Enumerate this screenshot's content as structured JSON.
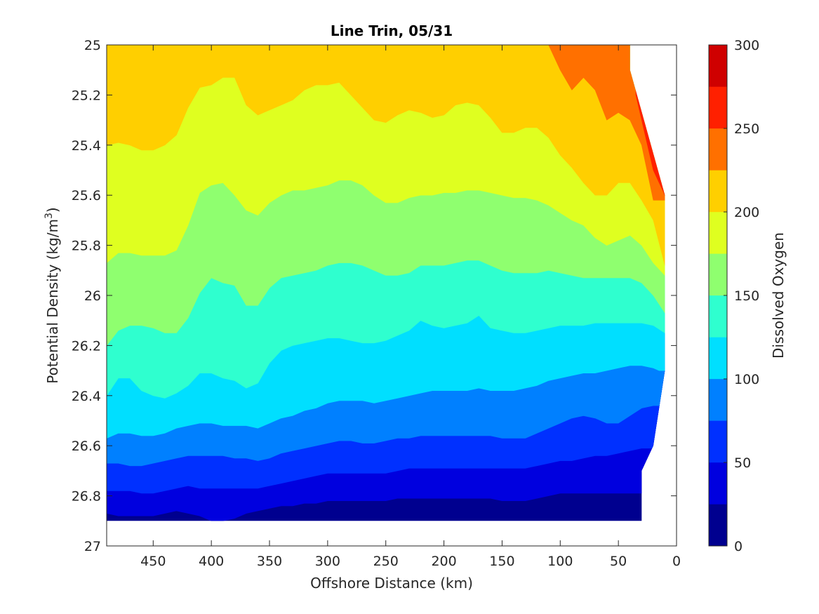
{
  "chart_data": {
    "type": "contourf",
    "title": "Line Trin, 05/31",
    "xlabel": "Offshore Distance (km)",
    "ylabel_main": "Potential Density (kg/m",
    "ylabel_sup": "3",
    "ylabel_close": ")",
    "colorbar_label": "Dissolved Oxygen",
    "xlim": [
      490,
      0
    ],
    "ylim": [
      25,
      27
    ],
    "x_reversed": true,
    "y_reversed": true,
    "x_ticks": [
      450,
      400,
      350,
      300,
      250,
      200,
      150,
      100,
      50,
      0
    ],
    "y_ticks": [
      25,
      25.2,
      25.4,
      25.6,
      25.8,
      26,
      26.2,
      26.4,
      26.6,
      26.8,
      27
    ],
    "y_tick_labels": [
      "25",
      "25.2",
      "25.4",
      "25.6",
      "25.8",
      "26",
      "26.2",
      "26.4",
      "26.6",
      "26.8",
      "27"
    ],
    "colorbar_ticks": [
      0,
      50,
      100,
      150,
      200,
      250,
      300
    ],
    "colorbar_range": [
      0,
      300
    ],
    "levels": [
      0,
      25,
      50,
      75,
      100,
      125,
      150,
      175,
      200,
      225,
      250,
      275,
      300
    ],
    "level_colors": [
      "#00008F",
      "#0000DF",
      "#0030FF",
      "#0080FF",
      "#00DFFF",
      "#2FFFCF",
      "#8FFF6F",
      "#DFFF20",
      "#FFCF00",
      "#FF7000",
      "#FF2000",
      "#CF0000"
    ],
    "data_extent": {
      "x": [
        490,
        490,
        30,
        30,
        20,
        10,
        10,
        40,
        40
      ],
      "y": [
        25,
        26.9,
        26.9,
        26.7,
        26.6,
        26.3,
        25.6,
        25.1,
        25
      ]
    },
    "contours": [
      {
        "level": 25,
        "x": [
          490,
          480,
          470,
          460,
          450,
          440,
          430,
          420,
          410,
          400,
          390,
          380,
          370,
          360,
          350,
          340,
          330,
          320,
          310,
          300,
          290,
          280,
          270,
          260,
          250,
          240,
          230,
          220,
          210,
          200,
          190,
          180,
          170,
          160,
          150,
          140,
          130,
          120,
          110,
          100,
          90,
          80,
          70,
          60,
          50,
          40,
          30
        ],
        "y": [
          26.87,
          26.88,
          26.88,
          26.88,
          26.88,
          26.87,
          26.86,
          26.87,
          26.88,
          26.9,
          26.9,
          26.89,
          26.87,
          26.86,
          26.85,
          26.84,
          26.84,
          26.83,
          26.83,
          26.82,
          26.82,
          26.82,
          26.82,
          26.82,
          26.82,
          26.81,
          26.81,
          26.81,
          26.81,
          26.81,
          26.81,
          26.81,
          26.81,
          26.81,
          26.82,
          26.82,
          26.82,
          26.81,
          26.8,
          26.79,
          26.79,
          26.79,
          26.79,
          26.79,
          26.79,
          26.79,
          26.79
        ]
      },
      {
        "level": 50,
        "x": [
          490,
          480,
          470,
          460,
          450,
          440,
          430,
          420,
          410,
          400,
          390,
          380,
          370,
          360,
          350,
          340,
          330,
          320,
          310,
          300,
          290,
          280,
          270,
          260,
          250,
          240,
          230,
          220,
          210,
          200,
          190,
          180,
          170,
          160,
          150,
          140,
          130,
          120,
          110,
          100,
          90,
          80,
          70,
          60,
          50,
          40,
          30
        ],
        "y": [
          26.78,
          26.78,
          26.78,
          26.79,
          26.79,
          26.78,
          26.77,
          26.76,
          26.77,
          26.77,
          26.77,
          26.77,
          26.77,
          26.77,
          26.76,
          26.75,
          26.74,
          26.73,
          26.72,
          26.71,
          26.71,
          26.71,
          26.71,
          26.71,
          26.71,
          26.7,
          26.69,
          26.69,
          26.69,
          26.69,
          26.69,
          26.69,
          26.69,
          26.69,
          26.69,
          26.69,
          26.69,
          26.68,
          26.67,
          26.66,
          26.66,
          26.65,
          26.64,
          26.64,
          26.63,
          26.62,
          26.61
        ]
      },
      {
        "level": 75,
        "x": [
          490,
          480,
          470,
          460,
          450,
          440,
          430,
          420,
          410,
          400,
          390,
          380,
          370,
          360,
          350,
          340,
          330,
          320,
          310,
          300,
          290,
          280,
          270,
          260,
          250,
          240,
          230,
          220,
          210,
          200,
          190,
          180,
          170,
          160,
          150,
          140,
          130,
          120,
          110,
          100,
          90,
          80,
          70,
          60,
          50,
          40,
          30,
          20
        ],
        "y": [
          26.67,
          26.67,
          26.68,
          26.68,
          26.67,
          26.66,
          26.65,
          26.64,
          26.64,
          26.64,
          26.64,
          26.65,
          26.65,
          26.66,
          26.65,
          26.63,
          26.62,
          26.61,
          26.6,
          26.59,
          26.58,
          26.58,
          26.59,
          26.59,
          26.58,
          26.57,
          26.57,
          26.56,
          26.56,
          26.56,
          26.56,
          26.56,
          26.56,
          26.56,
          26.57,
          26.57,
          26.57,
          26.55,
          26.53,
          26.51,
          26.49,
          26.48,
          26.49,
          26.51,
          26.51,
          26.48,
          26.45,
          26.44
        ]
      },
      {
        "level": 100,
        "x": [
          490,
          480,
          470,
          460,
          450,
          440,
          430,
          420,
          410,
          400,
          390,
          380,
          370,
          360,
          350,
          340,
          330,
          320,
          310,
          300,
          290,
          280,
          270,
          260,
          250,
          240,
          230,
          220,
          210,
          200,
          190,
          180,
          170,
          160,
          150,
          140,
          130,
          120,
          110,
          100,
          90,
          80,
          70,
          60,
          50,
          40,
          30,
          20,
          15
        ],
        "y": [
          26.57,
          26.55,
          26.55,
          26.56,
          26.56,
          26.55,
          26.53,
          26.52,
          26.51,
          26.51,
          26.52,
          26.52,
          26.52,
          26.53,
          26.51,
          26.49,
          26.48,
          26.46,
          26.45,
          26.43,
          26.42,
          26.42,
          26.42,
          26.43,
          26.42,
          26.41,
          26.4,
          26.39,
          26.38,
          26.38,
          26.38,
          26.38,
          26.37,
          26.38,
          26.38,
          26.38,
          26.37,
          26.36,
          26.34,
          26.33,
          26.32,
          26.31,
          26.31,
          26.3,
          26.29,
          26.28,
          26.28,
          26.29,
          26.3
        ]
      },
      {
        "level": 125,
        "x": [
          490,
          480,
          470,
          460,
          450,
          440,
          430,
          420,
          410,
          400,
          390,
          380,
          370,
          360,
          350,
          340,
          330,
          320,
          310,
          300,
          290,
          280,
          270,
          260,
          250,
          240,
          230,
          220,
          210,
          200,
          190,
          180,
          170,
          160,
          150,
          140,
          130,
          120,
          110,
          100,
          90,
          80,
          70,
          60,
          50,
          40,
          30,
          20,
          10
        ],
        "y": [
          26.4,
          26.33,
          26.33,
          26.38,
          26.4,
          26.41,
          26.39,
          26.36,
          26.31,
          26.31,
          26.33,
          26.34,
          26.37,
          26.35,
          26.27,
          26.22,
          26.2,
          26.19,
          26.18,
          26.17,
          26.17,
          26.18,
          26.19,
          26.19,
          26.18,
          26.16,
          26.14,
          26.1,
          26.12,
          26.13,
          26.12,
          26.11,
          26.08,
          26.13,
          26.14,
          26.15,
          26.15,
          26.14,
          26.13,
          26.12,
          26.12,
          26.12,
          26.11,
          26.11,
          26.11,
          26.11,
          26.11,
          26.12,
          26.15
        ]
      },
      {
        "level": 150,
        "x": [
          490,
          480,
          470,
          460,
          450,
          440,
          430,
          420,
          410,
          400,
          390,
          380,
          370,
          360,
          350,
          340,
          330,
          320,
          310,
          300,
          290,
          280,
          270,
          260,
          250,
          240,
          230,
          220,
          210,
          200,
          190,
          180,
          170,
          160,
          150,
          140,
          130,
          120,
          110,
          100,
          90,
          80,
          70,
          60,
          50,
          40,
          30,
          20,
          10
        ],
        "y": [
          26.2,
          26.14,
          26.12,
          26.12,
          26.13,
          26.15,
          26.15,
          26.09,
          25.99,
          25.93,
          25.95,
          25.96,
          26.04,
          26.04,
          25.97,
          25.93,
          25.92,
          25.91,
          25.9,
          25.88,
          25.87,
          25.87,
          25.88,
          25.9,
          25.92,
          25.92,
          25.91,
          25.88,
          25.88,
          25.88,
          25.87,
          25.86,
          25.86,
          25.88,
          25.9,
          25.91,
          25.91,
          25.91,
          25.9,
          25.91,
          25.92,
          25.93,
          25.93,
          25.93,
          25.93,
          25.93,
          25.95,
          26.0,
          26.07
        ]
      },
      {
        "level": 175,
        "x": [
          490,
          480,
          470,
          460,
          450,
          440,
          430,
          420,
          410,
          400,
          390,
          380,
          370,
          360,
          350,
          340,
          330,
          320,
          310,
          300,
          290,
          280,
          270,
          260,
          250,
          240,
          230,
          220,
          210,
          200,
          190,
          180,
          170,
          160,
          150,
          140,
          130,
          120,
          110,
          100,
          90,
          80,
          70,
          60,
          50,
          40,
          30,
          20,
          10
        ],
        "y": [
          25.87,
          25.83,
          25.83,
          25.84,
          25.84,
          25.84,
          25.82,
          25.72,
          25.59,
          25.56,
          25.55,
          25.6,
          25.66,
          25.68,
          25.63,
          25.6,
          25.58,
          25.58,
          25.57,
          25.56,
          25.54,
          25.54,
          25.56,
          25.6,
          25.63,
          25.63,
          25.61,
          25.6,
          25.6,
          25.59,
          25.59,
          25.58,
          25.58,
          25.59,
          25.6,
          25.61,
          25.61,
          25.62,
          25.64,
          25.67,
          25.7,
          25.72,
          25.77,
          25.8,
          25.78,
          25.76,
          25.8,
          25.87,
          25.92
        ]
      },
      {
        "level": 200,
        "x": [
          490,
          480,
          470,
          460,
          450,
          440,
          430,
          420,
          410,
          400,
          390,
          380,
          370,
          360,
          350,
          340,
          330,
          320,
          310,
          300,
          290,
          280,
          270,
          260,
          250,
          240,
          230,
          220,
          210,
          200,
          190,
          180,
          170,
          160,
          150,
          140,
          130,
          120,
          110,
          100,
          90,
          80,
          70,
          60,
          50,
          40,
          30,
          20,
          10
        ],
        "y": [
          25.4,
          25.39,
          25.4,
          25.42,
          25.42,
          25.4,
          25.36,
          25.25,
          25.17,
          25.16,
          25.13,
          25.13,
          25.24,
          25.28,
          25.26,
          25.24,
          25.22,
          25.18,
          25.16,
          25.16,
          25.15,
          25.2,
          25.25,
          25.3,
          25.31,
          25.28,
          25.26,
          25.27,
          25.29,
          25.28,
          25.24,
          25.23,
          25.24,
          25.29,
          25.35,
          25.35,
          25.33,
          25.33,
          25.37,
          25.44,
          25.49,
          25.55,
          25.6,
          25.6,
          25.55,
          25.55,
          25.62,
          25.7,
          25.88
        ]
      },
      {
        "level": 225,
        "x": [
          110,
          100,
          90,
          80,
          70,
          60,
          50,
          40,
          30,
          20
        ],
        "y": [
          25.0,
          25.1,
          25.18,
          25.13,
          25.18,
          25.3,
          25.27,
          25.3,
          25.4,
          25.62
        ]
      },
      {
        "level": 250,
        "x": [
          35,
          30,
          20,
          10
        ],
        "y": [
          25.2,
          25.3,
          25.5,
          25.6
        ]
      }
    ]
  }
}
